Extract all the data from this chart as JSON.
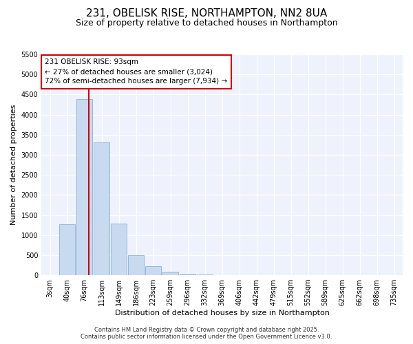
{
  "title": "231, OBELISK RISE, NORTHAMPTON, NN2 8UA",
  "subtitle": "Size of property relative to detached houses in Northampton",
  "xlabel": "Distribution of detached houses by size in Northampton",
  "ylabel": "Number of detached properties",
  "bar_labels": [
    "3sqm",
    "40sqm",
    "76sqm",
    "113sqm",
    "149sqm",
    "186sqm",
    "223sqm",
    "259sqm",
    "296sqm",
    "332sqm",
    "369sqm",
    "406sqm",
    "442sqm",
    "479sqm",
    "515sqm",
    "552sqm",
    "589sqm",
    "625sqm",
    "662sqm",
    "698sqm",
    "735sqm"
  ],
  "bar_values": [
    0,
    1270,
    4380,
    3310,
    1290,
    500,
    230,
    90,
    30,
    10,
    5,
    2,
    0,
    0,
    0,
    0,
    0,
    0,
    0,
    0,
    0
  ],
  "bar_color": "#c8daf0",
  "bar_edge_color": "#88b0d8",
  "vline_x": 2.27,
  "vline_color": "#cc0000",
  "annotation_text": "231 OBELISK RISE: 93sqm\n← 27% of detached houses are smaller (3,024)\n72% of semi-detached houses are larger (7,934) →",
  "annotation_box_color": "#ffffff",
  "annotation_box_edge": "#cc0000",
  "ylim": [
    0,
    5500
  ],
  "yticks": [
    0,
    500,
    1000,
    1500,
    2000,
    2500,
    3000,
    3500,
    4000,
    4500,
    5000,
    5500
  ],
  "footer1": "Contains HM Land Registry data © Crown copyright and database right 2025.",
  "footer2": "Contains public sector information licensed under the Open Government Licence v3.0.",
  "bg_color": "#ffffff",
  "plot_bg_color": "#eef2fc",
  "grid_color": "#ffffff",
  "title_fontsize": 11,
  "subtitle_fontsize": 9,
  "axis_label_fontsize": 8,
  "tick_fontsize": 7,
  "footer_fontsize": 6,
  "annot_fontsize": 7.5
}
